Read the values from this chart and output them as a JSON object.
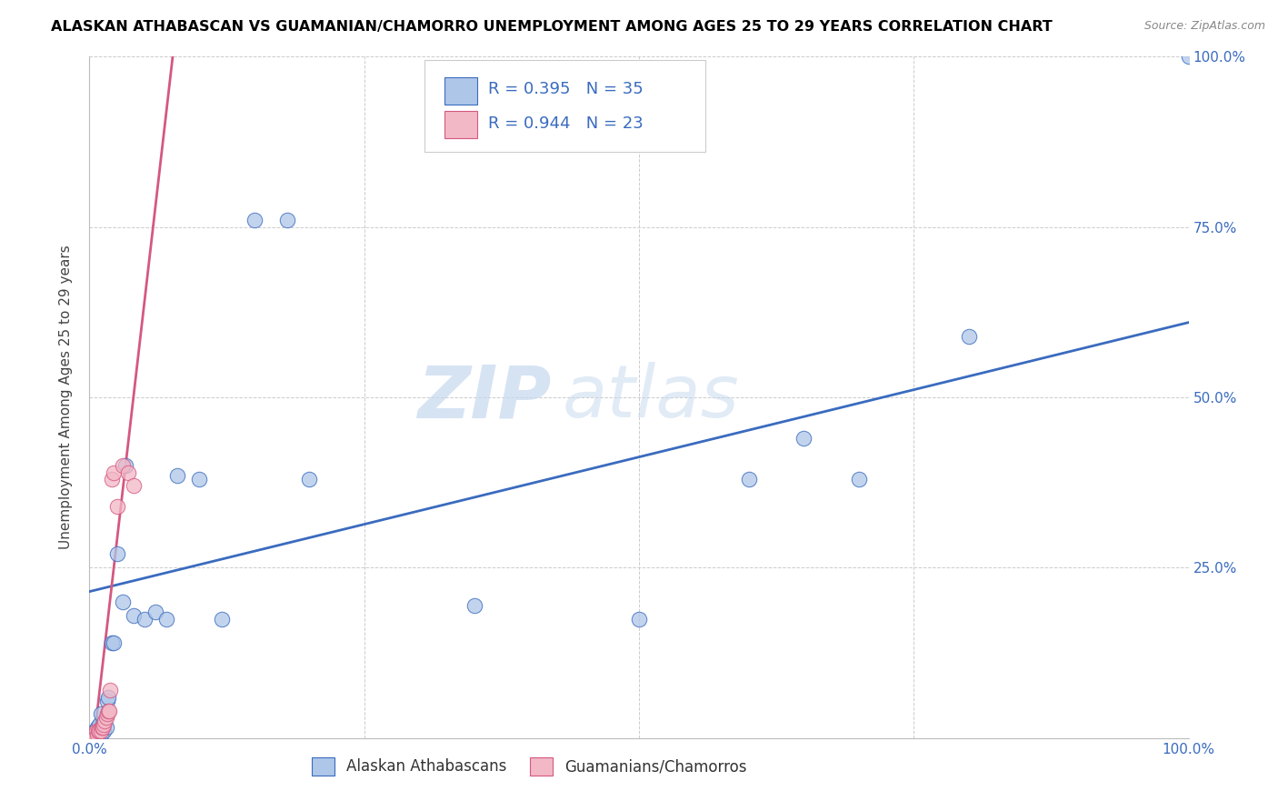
{
  "title": "ALASKAN ATHABASCAN VS GUAMANIAN/CHAMORRO UNEMPLOYMENT AMONG AGES 25 TO 29 YEARS CORRELATION CHART",
  "source": "Source: ZipAtlas.com",
  "ylabel": "Unemployment Among Ages 25 to 29 years",
  "xlim": [
    0,
    1.0
  ],
  "ylim": [
    0,
    1.0
  ],
  "blue_color": "#aec6e8",
  "pink_color": "#f2b8c6",
  "blue_line_color": "#3a6bbf",
  "pink_line_color": "#d45880",
  "watermark_zip": "ZIP",
  "watermark_atlas": "atlas",
  "legend_r_blue": "0.395",
  "legend_n_blue": "35",
  "legend_r_pink": "0.944",
  "legend_n_pink": "23",
  "blue_scatter_x": [
    0.003,
    0.005,
    0.006,
    0.007,
    0.008,
    0.009,
    0.01,
    0.01,
    0.012,
    0.013,
    0.015,
    0.016,
    0.017,
    0.02,
    0.022,
    0.025,
    0.03,
    0.033,
    0.04,
    0.05,
    0.06,
    0.07,
    0.08,
    0.1,
    0.12,
    0.15,
    0.18,
    0.2,
    0.35,
    0.5,
    0.6,
    0.65,
    0.7,
    0.8,
    1.0
  ],
  "blue_scatter_y": [
    0.005,
    0.01,
    0.005,
    0.015,
    0.005,
    0.02,
    0.005,
    0.035,
    0.02,
    0.01,
    0.015,
    0.055,
    0.06,
    0.14,
    0.14,
    0.27,
    0.2,
    0.4,
    0.18,
    0.175,
    0.185,
    0.175,
    0.385,
    0.38,
    0.175,
    0.76,
    0.76,
    0.38,
    0.195,
    0.175,
    0.38,
    0.44,
    0.38,
    0.59,
    1.0
  ],
  "pink_scatter_x": [
    0.003,
    0.004,
    0.005,
    0.006,
    0.007,
    0.008,
    0.009,
    0.01,
    0.011,
    0.012,
    0.013,
    0.014,
    0.015,
    0.016,
    0.017,
    0.018,
    0.019,
    0.02,
    0.022,
    0.025,
    0.03,
    0.035,
    0.04
  ],
  "pink_scatter_y": [
    0.005,
    0.005,
    0.005,
    0.01,
    0.005,
    0.01,
    0.01,
    0.01,
    0.015,
    0.015,
    0.02,
    0.025,
    0.03,
    0.035,
    0.04,
    0.04,
    0.07,
    0.38,
    0.39,
    0.34,
    0.4,
    0.39,
    0.37
  ],
  "blue_slope": 0.395,
  "blue_intercept": 0.215,
  "pink_slope": 14.0,
  "pink_intercept": -0.06
}
